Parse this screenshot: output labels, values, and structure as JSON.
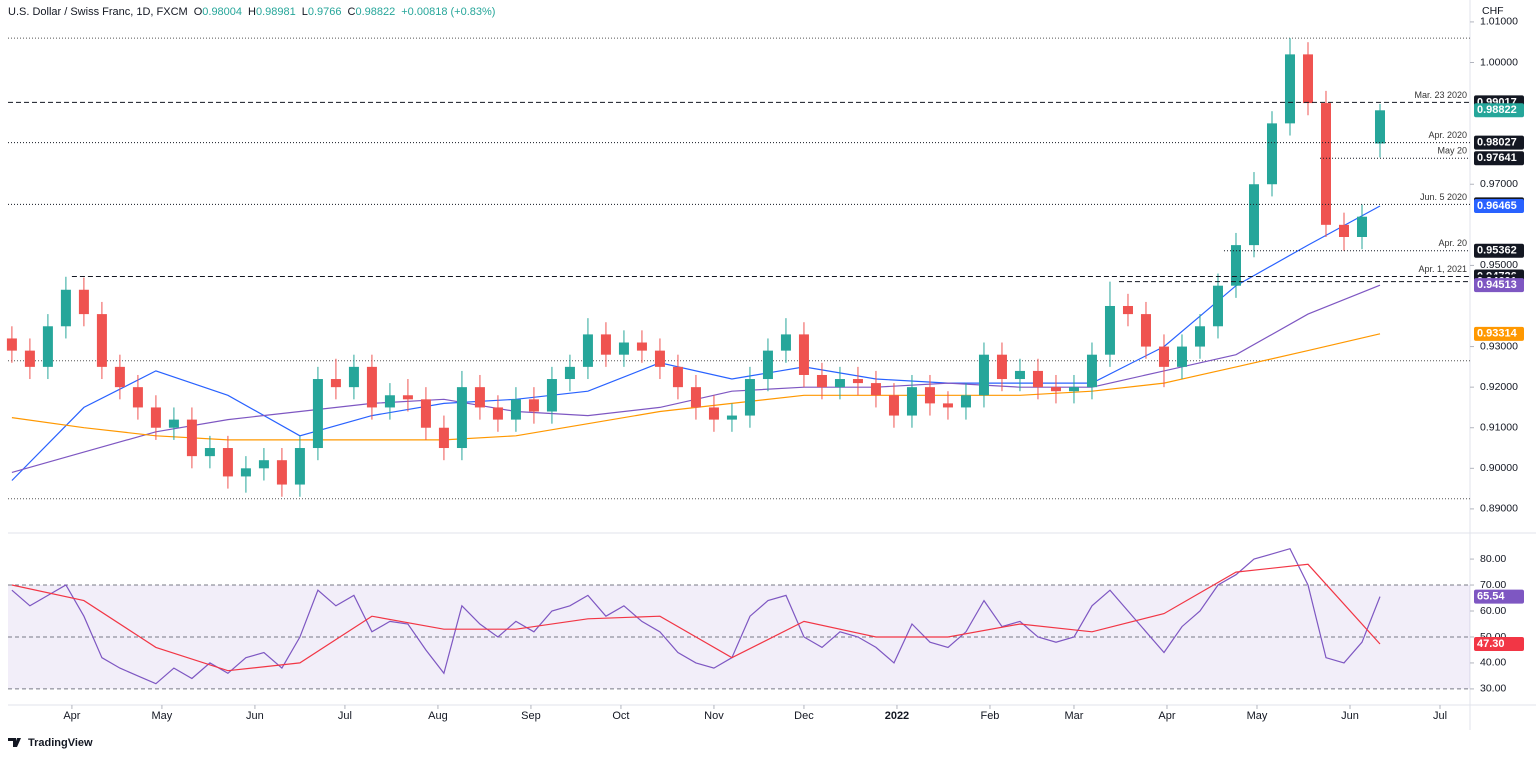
{
  "chart_data": [
    {
      "type": "candlestick",
      "title": "U.S. Dollar / Swiss Franc, 1D, FXCM",
      "ohlc_header": [
        {
          "label": "O",
          "value": 0.98004
        },
        {
          "label": "H",
          "value": 0.98981
        },
        {
          "label": "L",
          "value": 0.9766
        },
        {
          "label": "C",
          "value": 0.98822
        }
      ],
      "change": "+0.00818 (+0.83%)",
      "unit_label": "CHF",
      "x": [
        70,
        76,
        82,
        88,
        94,
        100,
        106,
        112,
        118,
        124,
        130,
        136,
        142,
        148,
        154,
        160,
        166,
        172,
        178,
        184,
        190,
        196,
        202,
        208,
        214,
        220,
        226,
        232,
        238,
        244,
        250,
        256,
        262,
        268,
        274,
        280,
        286,
        292,
        298,
        304,
        310,
        316,
        322,
        328,
        334,
        340,
        346,
        352,
        358,
        364,
        370,
        376,
        382,
        388,
        394,
        400,
        406,
        412,
        418,
        424,
        430,
        436,
        442,
        448,
        454,
        460,
        466,
        472,
        478,
        484,
        490,
        496,
        502,
        508,
        514,
        520,
        526
      ],
      "candles": {
        "open": [
          0.932,
          0.929,
          0.925,
          0.935,
          0.944,
          0.938,
          0.925,
          0.92,
          0.915,
          0.91,
          0.912,
          0.903,
          0.905,
          0.898,
          0.9,
          0.902,
          0.896,
          0.905,
          0.922,
          0.92,
          0.925,
          0.915,
          0.918,
          0.917,
          0.91,
          0.905,
          0.92,
          0.915,
          0.912,
          0.917,
          0.914,
          0.922,
          0.925,
          0.933,
          0.928,
          0.931,
          0.929,
          0.925,
          0.92,
          0.915,
          0.912,
          0.913,
          0.922,
          0.929,
          0.933,
          0.923,
          0.92,
          0.922,
          0.921,
          0.918,
          0.913,
          0.92,
          0.916,
          0.915,
          0.918,
          0.928,
          0.922,
          0.924,
          0.92,
          0.919,
          0.92,
          0.928,
          0.94,
          0.938,
          0.93,
          0.925,
          0.93,
          0.935,
          0.945,
          0.955,
          0.97,
          0.985,
          1.002,
          0.99,
          0.96,
          0.957,
          0.98004
        ],
        "high": [
          0.935,
          0.932,
          0.938,
          0.9472,
          0.947,
          0.941,
          0.928,
          0.923,
          0.918,
          0.915,
          0.915,
          0.908,
          0.908,
          0.903,
          0.905,
          0.905,
          0.908,
          0.925,
          0.927,
          0.928,
          0.928,
          0.921,
          0.922,
          0.92,
          0.913,
          0.924,
          0.923,
          0.918,
          0.92,
          0.92,
          0.925,
          0.928,
          0.937,
          0.936,
          0.934,
          0.934,
          0.932,
          0.928,
          0.923,
          0.918,
          0.916,
          0.925,
          0.932,
          0.937,
          0.936,
          0.926,
          0.925,
          0.925,
          0.924,
          0.921,
          0.923,
          0.923,
          0.919,
          0.921,
          0.931,
          0.931,
          0.927,
          0.927,
          0.923,
          0.923,
          0.931,
          0.946,
          0.943,
          0.941,
          0.933,
          0.933,
          0.938,
          0.948,
          0.958,
          0.973,
          0.988,
          1.006,
          1.005,
          0.993,
          0.963,
          0.965,
          0.98981
        ],
        "low": [
          0.926,
          0.922,
          0.922,
          0.932,
          0.935,
          0.922,
          0.917,
          0.912,
          0.907,
          0.907,
          0.9,
          0.9,
          0.895,
          0.894,
          0.897,
          0.893,
          0.893,
          0.902,
          0.917,
          0.917,
          0.912,
          0.912,
          0.914,
          0.907,
          0.902,
          0.902,
          0.912,
          0.909,
          0.909,
          0.911,
          0.911,
          0.919,
          0.922,
          0.925,
          0.925,
          0.926,
          0.922,
          0.917,
          0.912,
          0.909,
          0.909,
          0.91,
          0.919,
          0.926,
          0.92,
          0.917,
          0.917,
          0.918,
          0.915,
          0.91,
          0.91,
          0.913,
          0.912,
          0.912,
          0.915,
          0.919,
          0.919,
          0.917,
          0.916,
          0.916,
          0.917,
          0.925,
          0.935,
          0.927,
          0.92,
          0.922,
          0.927,
          0.932,
          0.942,
          0.952,
          0.967,
          0.982,
          0.987,
          0.957,
          0.9536,
          0.954,
          0.9766
        ],
        "close": [
          0.929,
          0.925,
          0.935,
          0.944,
          0.938,
          0.925,
          0.92,
          0.915,
          0.91,
          0.912,
          0.903,
          0.905,
          0.898,
          0.9,
          0.902,
          0.896,
          0.905,
          0.922,
          0.92,
          0.925,
          0.915,
          0.918,
          0.917,
          0.91,
          0.905,
          0.92,
          0.915,
          0.912,
          0.917,
          0.914,
          0.922,
          0.925,
          0.933,
          0.928,
          0.931,
          0.929,
          0.925,
          0.92,
          0.915,
          0.912,
          0.913,
          0.922,
          0.929,
          0.933,
          0.923,
          0.92,
          0.922,
          0.921,
          0.918,
          0.913,
          0.92,
          0.916,
          0.915,
          0.918,
          0.928,
          0.922,
          0.924,
          0.92,
          0.919,
          0.92,
          0.928,
          0.94,
          0.938,
          0.93,
          0.925,
          0.93,
          0.935,
          0.945,
          0.955,
          0.97,
          0.985,
          1.002,
          0.99,
          0.96,
          0.957,
          0.962,
          0.98822
        ]
      },
      "up_color": "#26a69a",
      "down_color": "#ef5350",
      "last_color": "#26a69a",
      "series": [
        {
          "color": "#2962ff",
          "x": [
            70,
            94,
            118,
            142,
            166,
            190,
            214,
            238,
            262,
            286,
            310,
            334,
            358,
            382,
            406,
            430,
            454,
            478,
            502,
            526
          ],
          "values": [
            0.897,
            0.915,
            0.924,
            0.918,
            0.908,
            0.913,
            0.916,
            0.917,
            0.919,
            0.926,
            0.922,
            0.925,
            0.922,
            0.921,
            0.921,
            0.921,
            0.93,
            0.945,
            0.955,
            0.96465
          ]
        },
        {
          "color": "#7e57c2",
          "x": [
            70,
            94,
            118,
            142,
            166,
            190,
            214,
            238,
            262,
            286,
            310,
            334,
            358,
            382,
            406,
            430,
            454,
            478,
            502,
            526
          ],
          "values": [
            0.899,
            0.904,
            0.909,
            0.912,
            0.914,
            0.916,
            0.917,
            0.914,
            0.913,
            0.915,
            0.919,
            0.92,
            0.92,
            0.921,
            0.92,
            0.92,
            0.924,
            0.928,
            0.938,
            0.94513
          ]
        },
        {
          "color": "#ff9800",
          "x": [
            70,
            94,
            118,
            142,
            166,
            190,
            214,
            238,
            262,
            286,
            310,
            334,
            358,
            382,
            406,
            430,
            454,
            478,
            502,
            526
          ],
          "values": [
            0.9125,
            0.91,
            0.908,
            0.907,
            0.907,
            0.907,
            0.907,
            0.908,
            0.911,
            0.914,
            0.916,
            0.918,
            0.918,
            0.918,
            0.918,
            0.919,
            0.921,
            0.925,
            0.929,
            0.93314
          ]
        }
      ],
      "levels": [
        {
          "value": 0.99017,
          "label": "Mar. 23 2020",
          "start": 68.7,
          "style": "dashed"
        },
        {
          "value": 0.98027,
          "label": "Apr. 2020",
          "start": 68.7,
          "style": "dotted"
        },
        {
          "value": 0.97641,
          "label": "May 20",
          "start": 506,
          "style": "dotted"
        },
        {
          "value": 0.96503,
          "label": "Jun. 5 2020",
          "start": 68.7,
          "style": "dotted"
        },
        {
          "value": 0.95362,
          "label": "Apr. 20",
          "start": 474,
          "style": "dotted"
        },
        {
          "value": 0.94726,
          "label": "Apr. 1, 2021",
          "start": 90,
          "style": "dashed"
        },
        {
          "value": 0.94601,
          "start": 439,
          "style": "dashed"
        }
      ],
      "plain_levels": [
        1.006,
        0.9265,
        0.8925
      ],
      "xlim": [
        68.7,
        556
      ],
      "xticks": [
        {
          "value": 90,
          "label": "Apr"
        },
        {
          "value": 120,
          "label": "May"
        },
        {
          "value": 151,
          "label": "Jun"
        },
        {
          "value": 181,
          "label": "Jul"
        },
        {
          "value": 212,
          "label": "Aug"
        },
        {
          "value": 243,
          "label": "Sep"
        },
        {
          "value": 273,
          "label": "Oct"
        },
        {
          "value": 304,
          "label": "Nov"
        },
        {
          "value": 334,
          "label": "Dec"
        },
        {
          "value": 365,
          "label": "2022"
        },
        {
          "value": 396,
          "label": "Feb"
        },
        {
          "value": 424,
          "label": "Mar"
        },
        {
          "value": 455,
          "label": "Apr"
        },
        {
          "value": 485,
          "label": "May"
        },
        {
          "value": 516,
          "label": "Jun"
        },
        {
          "value": 546,
          "label": "Jul"
        }
      ],
      "ylim": [
        0.8848,
        1.0154
      ],
      "yticks": [
        {
          "value": 1.01,
          "label": "1.01000"
        },
        {
          "value": 1.0,
          "label": "1.00000"
        },
        {
          "value": 0.97,
          "label": "0.97000"
        },
        {
          "value": 0.95,
          "label": "0.95000"
        },
        {
          "value": 0.93,
          "label": "0.93000"
        },
        {
          "value": 0.92,
          "label": "0.92000"
        },
        {
          "value": 0.91,
          "label": "0.91000"
        },
        {
          "value": 0.9,
          "label": "0.90000"
        },
        {
          "value": 0.89,
          "label": "0.89000"
        }
      ]
    },
    {
      "type": "line",
      "band": [
        30,
        70
      ],
      "band_color": "rgba(126,87,194,0.1)",
      "levels": [
        70,
        50,
        30
      ],
      "xlim": [
        68.7,
        556
      ],
      "series": [
        {
          "color": "#7e57c2",
          "x": [
            70,
            76,
            82,
            88,
            94,
            100,
            106,
            112,
            118,
            124,
            130,
            136,
            142,
            148,
            154,
            160,
            166,
            172,
            178,
            184,
            190,
            196,
            202,
            208,
            214,
            220,
            226,
            232,
            238,
            244,
            250,
            256,
            262,
            268,
            274,
            280,
            286,
            292,
            298,
            304,
            310,
            316,
            322,
            328,
            334,
            340,
            346,
            352,
            358,
            364,
            370,
            376,
            382,
            388,
            394,
            400,
            406,
            412,
            418,
            424,
            430,
            436,
            442,
            448,
            454,
            460,
            466,
            472,
            478,
            484,
            490,
            496,
            502,
            508,
            514,
            520,
            526
          ],
          "values": [
            68,
            62,
            66,
            70,
            58,
            42,
            38,
            35,
            32,
            38,
            34,
            40,
            36,
            42,
            44,
            38,
            50,
            68,
            62,
            66,
            52,
            56,
            55,
            45,
            36,
            62,
            55,
            50,
            56,
            52,
            60,
            62,
            66,
            58,
            62,
            56,
            52,
            44,
            40,
            38,
            42,
            58,
            64,
            66,
            50,
            46,
            52,
            50,
            46,
            40,
            55,
            48,
            46,
            52,
            64,
            54,
            56,
            50,
            48,
            50,
            62,
            68,
            60,
            52,
            44,
            54,
            60,
            70,
            74,
            80,
            82,
            84,
            70,
            42,
            40,
            48,
            65.54
          ]
        },
        {
          "color": "#f23645",
          "x": [
            70,
            94,
            118,
            142,
            166,
            190,
            214,
            238,
            262,
            286,
            310,
            334,
            358,
            382,
            406,
            430,
            454,
            478,
            502,
            526
          ],
          "values": [
            70,
            64,
            46,
            37,
            40,
            58,
            53,
            53,
            57,
            58,
            42,
            56,
            50,
            50,
            55,
            52,
            59,
            75,
            78,
            47.3
          ]
        }
      ],
      "tags": [
        {
          "value": 65.54,
          "label": "65.54",
          "color": "#7e57c2"
        },
        {
          "value": 47.3,
          "label": "47.30",
          "color": "#f23645"
        }
      ],
      "ylim": [
        23.8,
        88.5
      ],
      "yticks": [
        {
          "value": 80,
          "label": "80.00"
        },
        {
          "value": 70,
          "label": "70.00"
        },
        {
          "value": 60,
          "label": "60.00"
        },
        {
          "value": 50,
          "label": "50.00"
        },
        {
          "value": 40,
          "label": "40.00"
        },
        {
          "value": 30,
          "label": "30.00"
        }
      ]
    }
  ],
  "footer": "TradingView"
}
